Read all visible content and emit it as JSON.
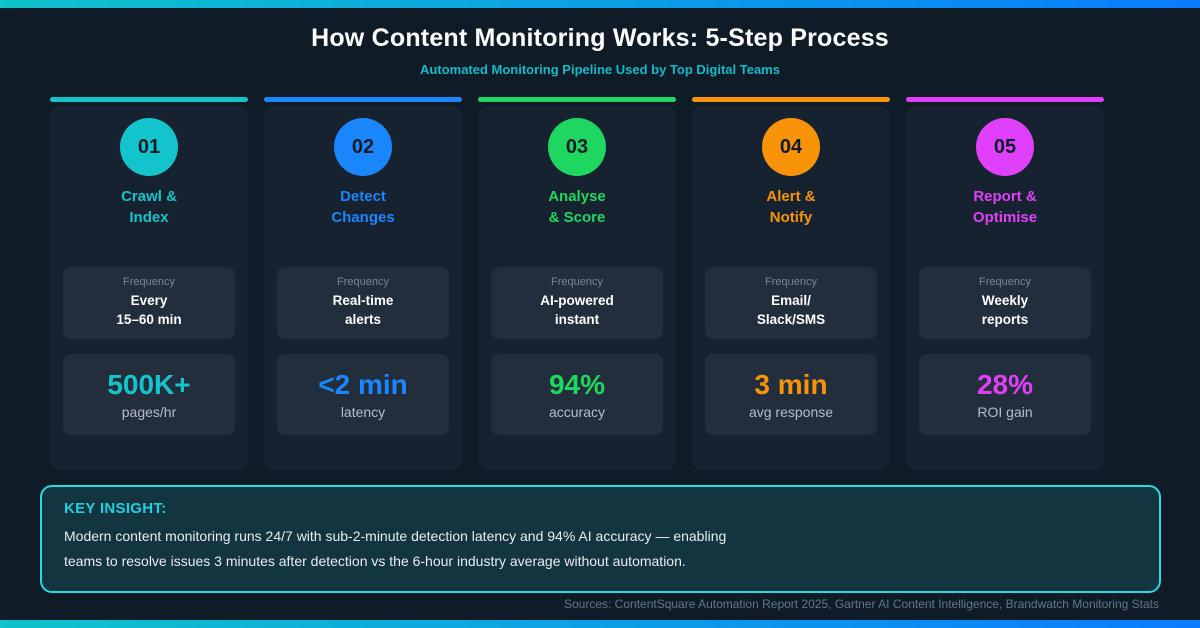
{
  "page": {
    "title": "How Content Monitoring Works: 5-Step Process",
    "subtitle": "Automated Monitoring Pipeline Used by Top Digital Teams"
  },
  "colors": {
    "background": "#101b28",
    "card_background": "#16222f",
    "inner_box_background": "#232e3c",
    "top_bar_gradient_start": "#0ec3cb",
    "top_bar_gradient_end": "#0a7cff",
    "insight_border": "#2bd9e2",
    "insight_background": "#123540"
  },
  "steps": [
    {
      "number": "01",
      "title": "Crawl &\nIndex",
      "frequency_label": "Frequency",
      "frequency": "Every\n15–60 min",
      "metric": "500K+",
      "metric_label": "pages/hr",
      "color": "#14c4cc"
    },
    {
      "number": "02",
      "title": "Detect\nChanges",
      "frequency_label": "Frequency",
      "frequency": "Real-time\nalerts",
      "metric": "<2 min",
      "metric_label": "latency",
      "color": "#1a86ff"
    },
    {
      "number": "03",
      "title": "Analyse\n& Score",
      "frequency_label": "Frequency",
      "frequency": "AI-powered\ninstant",
      "metric": "94%",
      "metric_label": "accuracy",
      "color": "#1ed760"
    },
    {
      "number": "04",
      "title": "Alert &\nNotify",
      "frequency_label": "Frequency",
      "frequency": "Email/\nSlack/SMS",
      "metric": "3 min",
      "metric_label": "avg response",
      "color": "#f99408"
    },
    {
      "number": "05",
      "title": "Report &\nOptimise",
      "frequency_label": "Frequency",
      "frequency": "Weekly\nreports",
      "metric": "28%",
      "metric_label": "ROI gain",
      "color": "#e040fb"
    }
  ],
  "insight": {
    "heading": "KEY INSIGHT:",
    "body": "Modern content monitoring runs 24/7 with sub-2-minute detection latency and 94% AI accuracy — enabling teams to resolve issues 3 minutes after detection vs the 6-hour industry average without automation."
  },
  "footer": {
    "sources": "Sources: ContentSquare Automation Report 2025, Gartner AI Content Intelligence, Brandwatch Monitoring Stats"
  }
}
